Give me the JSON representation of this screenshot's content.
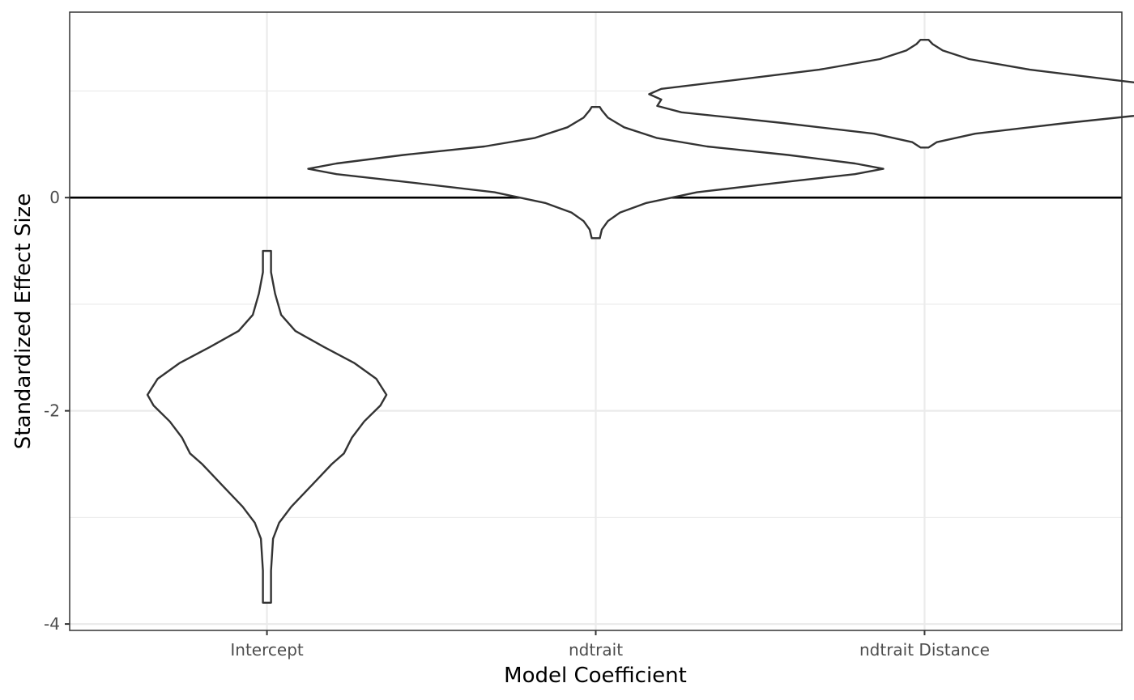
{
  "chart_data": {
    "type": "violin",
    "title": "",
    "xlabel": "Model Coefficient",
    "ylabel": "Standardized Effect Size",
    "categories": [
      "Intercept",
      "ndtrait",
      "ndtrait Distance"
    ],
    "ylim": [
      -4.06,
      1.74
    ],
    "yticks": [
      -4,
      -2,
      0
    ],
    "ytick_labels": [
      "-4",
      "-2",
      "0"
    ],
    "reference_line": 0,
    "grid": true,
    "legend": "none",
    "violins": [
      {
        "category": "Intercept",
        "min": -3.8,
        "max": -0.5,
        "profile": [
          [
            -3.8,
            0.02
          ],
          [
            -3.5,
            0.02
          ],
          [
            -3.2,
            0.03
          ],
          [
            -3.05,
            0.06
          ],
          [
            -2.9,
            0.12
          ],
          [
            -2.7,
            0.22
          ],
          [
            -2.5,
            0.32
          ],
          [
            -2.4,
            0.38
          ],
          [
            -2.25,
            0.42
          ],
          [
            -2.1,
            0.48
          ],
          [
            -1.95,
            0.56
          ],
          [
            -1.85,
            0.59
          ],
          [
            -1.7,
            0.54
          ],
          [
            -1.55,
            0.43
          ],
          [
            -1.4,
            0.28
          ],
          [
            -1.25,
            0.14
          ],
          [
            -1.1,
            0.07
          ],
          [
            -0.9,
            0.04
          ],
          [
            -0.7,
            0.02
          ],
          [
            -0.5,
            0.02
          ]
        ]
      },
      {
        "category": "ndtrait",
        "min": -0.38,
        "max": 0.85,
        "profile": [
          [
            -0.38,
            0.02
          ],
          [
            -0.3,
            0.03
          ],
          [
            -0.22,
            0.06
          ],
          [
            -0.14,
            0.12
          ],
          [
            -0.05,
            0.25
          ],
          [
            0.05,
            0.5
          ],
          [
            0.15,
            0.95
          ],
          [
            0.22,
            1.28
          ],
          [
            0.27,
            1.42
          ],
          [
            0.32,
            1.28
          ],
          [
            0.4,
            0.95
          ],
          [
            0.48,
            0.55
          ],
          [
            0.56,
            0.3
          ],
          [
            0.66,
            0.14
          ],
          [
            0.75,
            0.06
          ],
          [
            0.82,
            0.03
          ],
          [
            0.85,
            0.02
          ]
        ]
      },
      {
        "category": "ndtrait Distance",
        "min": 0.47,
        "max": 1.48,
        "profile": [
          [
            0.47,
            0.02
          ],
          [
            0.52,
            0.06
          ],
          [
            0.6,
            0.25
          ],
          [
            0.7,
            0.7
          ],
          [
            0.8,
            1.2
          ],
          [
            0.86,
            1.32
          ],
          [
            0.92,
            1.3
          ],
          [
            0.97,
            1.36
          ],
          [
            1.02,
            1.3
          ],
          [
            1.1,
            0.95
          ],
          [
            1.2,
            0.52
          ],
          [
            1.3,
            0.22
          ],
          [
            1.38,
            0.09
          ],
          [
            1.44,
            0.04
          ],
          [
            1.48,
            0.02
          ]
        ]
      }
    ]
  }
}
